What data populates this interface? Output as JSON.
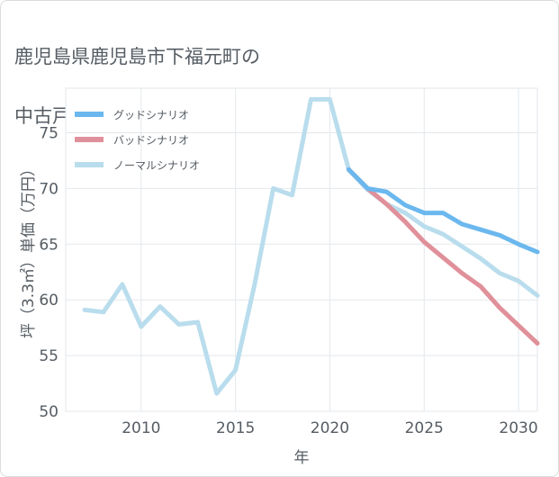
{
  "chart_data": {
    "type": "line",
    "title_lines": [
      "鹿児島県鹿児島市下福元町の",
      "中古戸建ての価格推移"
    ],
    "xlabel": "年",
    "ylabel": "坪（3.3㎡）単価（万円）",
    "xlim": [
      2006,
      2031
    ],
    "ylim": [
      50,
      79
    ],
    "x_ticks": [
      2010,
      2015,
      2020,
      2025,
      2030
    ],
    "y_ticks": [
      50,
      55,
      60,
      65,
      70,
      75
    ],
    "legend_position": "top-left",
    "series": [
      {
        "name": "グッドシナリオ",
        "color": "#6bb8ee",
        "x": [
          2021,
          2022,
          2023,
          2024,
          2025,
          2026,
          2027,
          2028,
          2029,
          2030,
          2031
        ],
        "values": [
          71.7,
          70.0,
          69.7,
          68.5,
          67.8,
          67.8,
          66.8,
          66.3,
          65.8,
          65.0,
          64.3
        ]
      },
      {
        "name": "バッドシナリオ",
        "color": "#e0909a",
        "x": [
          2021,
          2022,
          2023,
          2024,
          2025,
          2026,
          2027,
          2028,
          2029,
          2030,
          2031
        ],
        "values": [
          71.7,
          70.0,
          68.6,
          67.0,
          65.2,
          63.8,
          62.4,
          61.2,
          59.3,
          57.7,
          56.1
        ]
      },
      {
        "name": "ノーマルシナリオ",
        "color": "#b9dded",
        "x": [
          2007,
          2008,
          2009,
          2010,
          2011,
          2012,
          2013,
          2014,
          2015,
          2016,
          2017,
          2018,
          2019,
          2020,
          2021,
          2022,
          2023,
          2024,
          2025,
          2026,
          2027,
          2028,
          2029,
          2030,
          2031
        ],
        "values": [
          59.1,
          58.9,
          61.4,
          57.6,
          59.4,
          57.8,
          58.0,
          51.6,
          53.7,
          61.3,
          70.0,
          69.4,
          78.0,
          78.0,
          71.7,
          69.9,
          68.6,
          67.8,
          66.6,
          65.9,
          64.8,
          63.7,
          62.4,
          61.7,
          60.4
        ]
      }
    ]
  }
}
